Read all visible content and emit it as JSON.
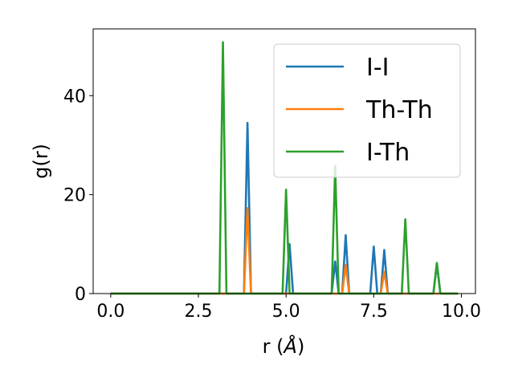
{
  "chart_data": {
    "type": "line",
    "xlabel_main": "r (",
    "xlabel_unit": "Å",
    "xlabel_close": ")",
    "ylabel": "g(r)",
    "xlim": [
      -0.5,
      10.4
    ],
    "ylim": [
      0,
      53.5
    ],
    "xticks": [
      0.0,
      2.5,
      5.0,
      7.5,
      10.0
    ],
    "xtick_labels": [
      "0.0",
      "2.5",
      "5.0",
      "7.5",
      "10.0"
    ],
    "yticks": [
      0,
      20,
      40
    ],
    "ytick_labels": [
      "0",
      "20",
      "40"
    ],
    "grid": false,
    "legend_position": "upper right",
    "series": [
      {
        "name": "I-I",
        "color": "#1f77b4",
        "x": [
          0.0,
          3.8,
          3.9,
          4.0,
          5.0,
          5.1,
          5.2,
          6.3,
          6.4,
          6.5,
          6.6,
          6.7,
          6.8,
          7.4,
          7.5,
          7.6,
          7.7,
          7.8,
          7.9,
          9.2,
          9.3,
          9.4,
          9.9
        ],
        "y": [
          0,
          0,
          34.5,
          0,
          0,
          10.0,
          0,
          0,
          6.5,
          0,
          0,
          11.8,
          0,
          0,
          9.5,
          0,
          0,
          8.8,
          0,
          0,
          6.0,
          0,
          0
        ]
      },
      {
        "name": "Th-Th",
        "color": "#ff7f0e",
        "x": [
          0.0,
          3.8,
          3.9,
          4.0,
          6.6,
          6.7,
          6.8,
          7.7,
          7.8,
          7.9,
          9.9
        ],
        "y": [
          0,
          0,
          17.3,
          0,
          0,
          5.8,
          0,
          0,
          4.4,
          0,
          0
        ]
      },
      {
        "name": "I-Th",
        "color": "#2ca02c",
        "x": [
          0.0,
          3.1,
          3.2,
          3.3,
          4.9,
          5.0,
          5.1,
          6.3,
          6.4,
          6.5,
          8.3,
          8.4,
          8.5,
          9.2,
          9.3,
          9.4,
          9.9
        ],
        "y": [
          0,
          0,
          50.8,
          0,
          0,
          21.0,
          0,
          0,
          25.8,
          0,
          0,
          15.0,
          0,
          0,
          6.2,
          0,
          0
        ]
      }
    ]
  }
}
